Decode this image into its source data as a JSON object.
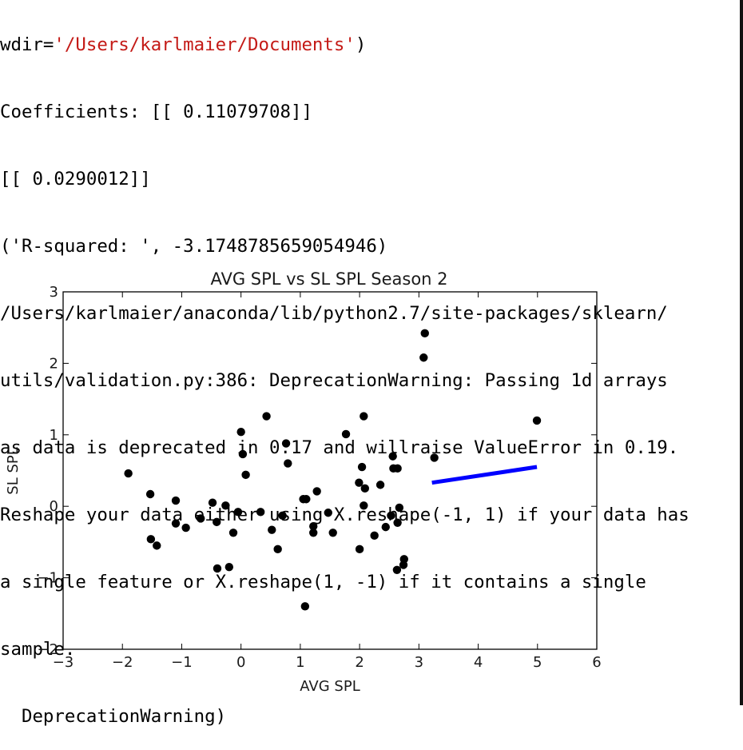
{
  "console": {
    "lines": [
      {
        "prefix": "wdir=",
        "string": "'/Users/karlmaier/Documents'",
        "suffix": ")"
      },
      {
        "text": "Coefficients: [[ 0.11079708]]"
      },
      {
        "text": "[[ 0.0290012]]"
      },
      {
        "text": "('R-squared: ', -3.1748785659054946)"
      },
      {
        "text": "/Users/karlmaier/anaconda/lib/python2.7/site-packages/sklearn/"
      },
      {
        "text": "utils/validation.py:386: DeprecationWarning: Passing 1d arrays"
      },
      {
        "text": "as data is deprecated in 0.17 and willraise ValueError in 0.19."
      },
      {
        "text": "Reshape your data either using X.reshape(-1, 1) if your data has"
      },
      {
        "text": "a single feature or X.reshape(1, -1) if it contains a single"
      },
      {
        "text": "sample."
      },
      {
        "text": "  DeprecationWarning)"
      }
    ]
  },
  "chart_data": {
    "type": "scatter",
    "title": "AVG SPL vs SL SPL Season 2",
    "xlabel": "AVG SPL",
    "ylabel": "SL SPL",
    "xlim": [
      -3,
      6
    ],
    "ylim": [
      -2,
      3
    ],
    "xticks": [
      "−3",
      "−2",
      "−1",
      "0",
      "1",
      "2",
      "3",
      "4",
      "5",
      "6"
    ],
    "yticks": [
      "−2",
      "−1",
      "0",
      "1",
      "2",
      "3"
    ],
    "grid": false,
    "points_color": "#000000",
    "line_color": "#0000ff",
    "points": [
      [
        -1.9,
        0.46
      ],
      [
        -1.53,
        0.17
      ],
      [
        -1.52,
        -0.46
      ],
      [
        -1.42,
        -0.55
      ],
      [
        -1.1,
        0.08
      ],
      [
        -1.1,
        -0.24
      ],
      [
        -0.93,
        -0.3
      ],
      [
        -0.68,
        -0.17
      ],
      [
        -0.48,
        0.05
      ],
      [
        -0.41,
        -0.22
      ],
      [
        -0.4,
        -0.87
      ],
      [
        -0.26,
        0.01
      ],
      [
        -0.2,
        -0.85
      ],
      [
        -0.13,
        -0.37
      ],
      [
        -0.05,
        -0.08
      ],
      [
        0.0,
        1.04
      ],
      [
        0.03,
        0.73
      ],
      [
        0.08,
        0.44
      ],
      [
        0.33,
        -0.08
      ],
      [
        0.43,
        1.26
      ],
      [
        0.52,
        -0.33
      ],
      [
        0.62,
        -0.6
      ],
      [
        0.7,
        -0.13
      ],
      [
        0.76,
        0.88
      ],
      [
        0.79,
        0.6
      ],
      [
        1.05,
        0.1
      ],
      [
        1.08,
        -1.4
      ],
      [
        1.1,
        0.1
      ],
      [
        1.22,
        -0.28
      ],
      [
        1.22,
        -0.37
      ],
      [
        1.28,
        0.21
      ],
      [
        1.47,
        -0.09
      ],
      [
        1.55,
        -0.37
      ],
      [
        1.77,
        1.01
      ],
      [
        1.99,
        0.33
      ],
      [
        2.0,
        -0.6
      ],
      [
        2.04,
        0.55
      ],
      [
        2.07,
        1.26
      ],
      [
        2.07,
        0.01
      ],
      [
        2.09,
        0.25
      ],
      [
        2.25,
        -0.41
      ],
      [
        2.35,
        0.3
      ],
      [
        2.44,
        -0.29
      ],
      [
        2.53,
        -0.13
      ],
      [
        2.56,
        0.7
      ],
      [
        2.57,
        0.53
      ],
      [
        2.64,
        0.53
      ],
      [
        2.63,
        -0.89
      ],
      [
        2.64,
        -0.23
      ],
      [
        2.67,
        -0.02
      ],
      [
        2.74,
        -0.82
      ],
      [
        2.75,
        -0.74
      ],
      [
        3.08,
        2.08
      ],
      [
        3.1,
        2.42
      ],
      [
        3.26,
        0.68
      ],
      [
        4.99,
        1.2
      ]
    ],
    "line": [
      [
        3.22,
        0.33
      ],
      [
        4.99,
        0.55
      ]
    ]
  }
}
